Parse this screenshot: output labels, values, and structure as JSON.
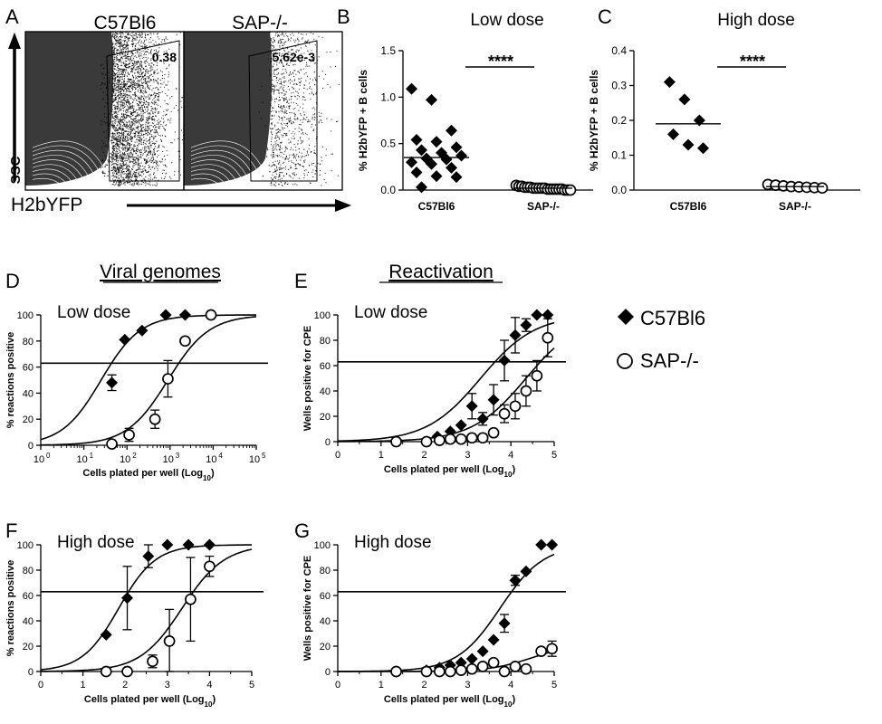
{
  "panel_letters": [
    "A",
    "B",
    "C",
    "D",
    "E",
    "F",
    "G"
  ],
  "section_titles": {
    "viral": "Viral genomes",
    "reactivation": "Reactivation"
  },
  "legend": [
    {
      "marker": "filled-diamond",
      "label": "C57Bl6"
    },
    {
      "marker": "open-circle",
      "label": "SAP-/-"
    }
  ],
  "flow": {
    "panels": [
      {
        "name": "C57Bl6",
        "gate_value": "0.38"
      },
      {
        "name": "SAP-/-",
        "gate_value": "5.62e-3"
      }
    ],
    "ylabel": "SSC",
    "xlabel": "H2bYFP"
  },
  "chart_data": [
    {
      "id": "B",
      "type": "scatter",
      "title": "Low dose",
      "xlabel": "",
      "ylabel": "% H2bYFP + B cells",
      "ylim": [
        0,
        1.5
      ],
      "yticks": [
        0,
        0.5,
        1.0,
        1.5
      ],
      "ytick_labels": [
        "0.0",
        "0.5",
        "1.0",
        "1.5"
      ],
      "categories": [
        "C57Bl6",
        "SAP-/-"
      ],
      "significance": "****",
      "series": [
        {
          "name": "C57Bl6",
          "marker": "filled-diamond",
          "median": 0.35,
          "values": [
            1.09,
            0.97,
            0.64,
            0.54,
            0.52,
            0.46,
            0.43,
            0.4,
            0.37,
            0.34,
            0.33,
            0.3,
            0.28,
            0.24,
            0.19,
            0.15,
            0.14,
            0.03
          ]
        },
        {
          "name": "SAP-/-",
          "marker": "open-circle",
          "median": 0.02,
          "values": [
            0.05,
            0.04,
            0.04,
            0.03,
            0.03,
            0.03,
            0.02,
            0.02,
            0.02,
            0.02,
            0.02,
            0.01,
            0.01,
            0.01,
            0.01,
            0.01,
            0.01,
            0.0,
            0.0,
            0.0
          ]
        }
      ]
    },
    {
      "id": "C",
      "type": "scatter",
      "title": "High dose",
      "xlabel": "",
      "ylabel": "% H2bYFP + B cells",
      "ylim": [
        0,
        0.4
      ],
      "yticks": [
        0,
        0.1,
        0.2,
        0.3,
        0.4
      ],
      "ytick_labels": [
        "0.0",
        "0.1",
        "0.2",
        "0.3",
        "0.4"
      ],
      "categories": [
        "C57Bl6",
        "SAP-/-"
      ],
      "significance": "****",
      "series": [
        {
          "name": "C57Bl6",
          "marker": "filled-diamond",
          "median": 0.19,
          "values": [
            0.31,
            0.26,
            0.2,
            0.16,
            0.13,
            0.12
          ]
        },
        {
          "name": "SAP-/-",
          "marker": "open-circle",
          "median": 0.01,
          "values": [
            0.016,
            0.014,
            0.012,
            0.01,
            0.009,
            0.008,
            0.007,
            0.006
          ]
        }
      ]
    },
    {
      "id": "D",
      "type": "scatter",
      "title": "Low dose",
      "xlabel": "Cells plated per well (Log",
      "xlabel_sub": "10",
      "xlabel_end": ")",
      "ylabel": "% reactions positive",
      "xscale": "log",
      "xlim": [
        0,
        5
      ],
      "xtick_labels": [
        "10",
        "10",
        "10",
        "10",
        "10",
        "10"
      ],
      "xtick_exp": [
        "0",
        "1",
        "2",
        "3",
        "4",
        "5"
      ],
      "ylim": [
        0,
        100
      ],
      "yticks": [
        0,
        20,
        40,
        60,
        80,
        100
      ],
      "reference_line": 63,
      "series": [
        {
          "name": "C57Bl6",
          "marker": "filled-diamond",
          "x": [
            1.65,
            1.95,
            2.35,
            2.9,
            3.35,
            3.95
          ],
          "y": [
            48,
            81,
            88,
            100,
            100,
            100
          ],
          "err": [
            6,
            0,
            0,
            0,
            0,
            0
          ],
          "fit": {
            "ec50": 1.4,
            "slope": 2.2
          }
        },
        {
          "name": "SAP-/-",
          "marker": "open-circle",
          "x": [
            1.65,
            2.05,
            2.65,
            2.95,
            3.35,
            3.95
          ],
          "y": [
            1,
            8,
            20,
            51,
            80,
            100
          ],
          "err": [
            0,
            5,
            7,
            14,
            0,
            0
          ],
          "fit": {
            "ec50": 2.95,
            "slope": 2.1
          }
        }
      ]
    },
    {
      "id": "E",
      "type": "scatter",
      "title": "Low dose",
      "xlabel": "Cells plated per well (Log",
      "xlabel_sub": "10",
      "xlabel_end": ")",
      "ylabel": "Wells positive for CPE",
      "xlim": [
        0,
        5
      ],
      "xticks": [
        0,
        1,
        2,
        3,
        4,
        5
      ],
      "ylim": [
        0,
        100
      ],
      "yticks": [
        0,
        20,
        40,
        60,
        80,
        100
      ],
      "reference_line": 63,
      "series": [
        {
          "name": "C57Bl6",
          "marker": "filled-diamond",
          "x": [
            1.35,
            2.05,
            2.3,
            2.6,
            2.85,
            3.1,
            3.35,
            3.6,
            3.85,
            4.1,
            4.35,
            4.6,
            4.85
          ],
          "y": [
            0,
            0,
            4,
            8,
            13,
            28,
            18,
            33,
            64,
            84,
            92,
            100,
            100
          ],
          "err": [
            0,
            0,
            0,
            0,
            0,
            10,
            5,
            12,
            16,
            14,
            5,
            0,
            0
          ],
          "fit": {
            "ec50": 3.3,
            "slope": 1.6
          }
        },
        {
          "name": "SAP-/-",
          "marker": "open-circle",
          "x": [
            1.35,
            2.05,
            2.35,
            2.6,
            2.85,
            3.1,
            3.35,
            3.6,
            3.85,
            4.1,
            4.35,
            4.6,
            4.85
          ],
          "y": [
            0,
            0,
            1,
            2,
            2,
            3,
            3,
            7,
            22,
            28,
            40,
            52,
            82
          ],
          "err": [
            0,
            0,
            0,
            0,
            0,
            0,
            0,
            0,
            7,
            10,
            12,
            12,
            15
          ],
          "fit": {
            "ec50": 4.35,
            "slope": 1.6
          }
        }
      ]
    },
    {
      "id": "F",
      "type": "scatter",
      "title": "High dose",
      "xlabel": "Cells plated per well (Log",
      "xlabel_sub": "10",
      "xlabel_end": ")",
      "ylabel": "% reactions positive",
      "xlim": [
        0,
        5
      ],
      "xticks": [
        0,
        1,
        2,
        3,
        4,
        5
      ],
      "ylim": [
        0,
        100
      ],
      "yticks": [
        0,
        20,
        40,
        60,
        80,
        100
      ],
      "reference_line": 63,
      "series": [
        {
          "name": "C57Bl6",
          "marker": "filled-diamond",
          "x": [
            1.55,
            2.05,
            2.55,
            3.0,
            3.5,
            4.0
          ],
          "y": [
            29,
            58,
            91,
            100,
            100,
            100
          ],
          "err": [
            0,
            25,
            9,
            0,
            0,
            0
          ],
          "fit": {
            "ec50": 1.85,
            "slope": 2.3
          }
        },
        {
          "name": "SAP-/-",
          "marker": "open-circle",
          "x": [
            1.55,
            2.05,
            2.65,
            3.05,
            3.55,
            4.0
          ],
          "y": [
            0,
            0,
            8,
            24,
            57,
            83
          ],
          "err": [
            0,
            0,
            5,
            25,
            33,
            8
          ],
          "fit": {
            "ec50": 3.35,
            "slope": 2.0
          }
        }
      ]
    },
    {
      "id": "G",
      "type": "scatter",
      "title": "High dose",
      "xlabel": "Cells plated per well (Log",
      "xlabel_sub": "10",
      "xlabel_end": ")",
      "ylabel": "Wells positive for CPE",
      "xlim": [
        0,
        5
      ],
      "xticks": [
        0,
        1,
        2,
        3,
        4,
        5
      ],
      "ylim": [
        0,
        100
      ],
      "yticks": [
        0,
        20,
        40,
        60,
        80,
        100
      ],
      "reference_line": 63,
      "series": [
        {
          "name": "C57Bl6",
          "marker": "filled-diamond",
          "x": [
            1.35,
            2.05,
            2.35,
            2.6,
            2.85,
            3.1,
            3.35,
            3.6,
            3.85,
            4.1,
            4.35,
            4.7,
            4.95
          ],
          "y": [
            0,
            1,
            3,
            5,
            7,
            10,
            16,
            25,
            38,
            72,
            79,
            100,
            100
          ],
          "err": [
            0,
            0,
            0,
            0,
            0,
            0,
            0,
            0,
            7,
            4,
            0,
            0,
            0
          ],
          "fit": {
            "ec50": 3.75,
            "slope": 2.0
          }
        },
        {
          "name": "SAP-/-",
          "marker": "open-circle",
          "x": [
            1.35,
            2.05,
            2.35,
            2.6,
            2.85,
            3.1,
            3.35,
            3.6,
            3.85,
            4.1,
            4.35,
            4.7,
            4.95
          ],
          "y": [
            0,
            0,
            0,
            0,
            1,
            2,
            4,
            7,
            0,
            4,
            2,
            16,
            18
          ],
          "err": [
            0,
            0,
            0,
            0,
            0,
            0,
            0,
            0,
            0,
            0,
            0,
            0,
            6
          ],
          "fit": {
            "top": 22,
            "ec50": 4.5,
            "slope": 2.0
          }
        }
      ]
    }
  ]
}
